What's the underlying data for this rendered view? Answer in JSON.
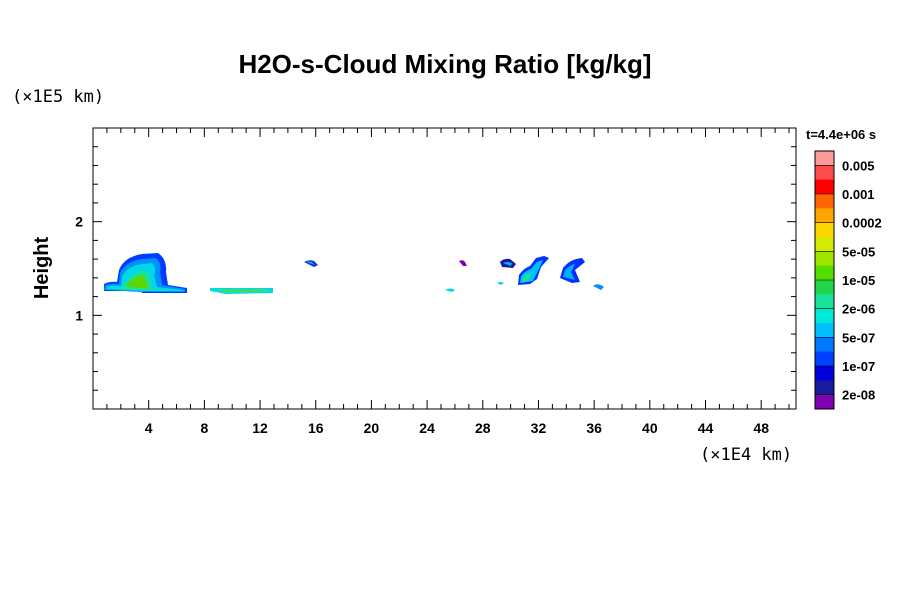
{
  "chart_data": {
    "type": "heatmap",
    "title": "H2O-s-Cloud Mixing Ratio [kg/kg]",
    "xlabel": "",
    "ylabel": "Height",
    "x_unit": "(×1E4 km)",
    "y_unit": "(×1E5 km)",
    "time_label": "t=4.4e+06 s",
    "xlim": [
      0,
      50.5
    ],
    "ylim": [
      0,
      3
    ],
    "x_ticks": [
      4,
      8,
      12,
      16,
      20,
      24,
      28,
      32,
      36,
      40,
      44,
      48
    ],
    "y_ticks": [
      1,
      2
    ],
    "grid": false,
    "colorbar": {
      "labels": [
        "0.005",
        "0.001",
        "0.0002",
        "5e-05",
        "1e-05",
        "2e-06",
        "5e-07",
        "1e-07",
        "2e-08"
      ],
      "colors_top_to_bottom": [
        "#ff9a9a",
        "#ff4b4b",
        "#ff0000",
        "#ff6600",
        "#ffa500",
        "#ffd700",
        "#d4ea00",
        "#9ee600",
        "#55dd00",
        "#22d44a",
        "#19e39a",
        "#00e8d8",
        "#00c0ff",
        "#0078ff",
        "#0040ff",
        "#0000dd",
        "#1a1a9c",
        "#8000b0"
      ]
    },
    "cloud_regions": [
      {
        "x": 4.5,
        "y": 1.45,
        "level": "5e-07"
      },
      {
        "x": 10.5,
        "y": 1.27,
        "level": "2e-06"
      },
      {
        "x": 15.8,
        "y": 1.56,
        "level": "1e-07"
      },
      {
        "x": 25.8,
        "y": 1.27,
        "level": "5e-07"
      },
      {
        "x": 26.8,
        "y": 1.57,
        "level": "2e-08"
      },
      {
        "x": 30.0,
        "y": 1.55,
        "level": "1e-07"
      },
      {
        "x": 29.5,
        "y": 1.36,
        "level": "5e-07"
      },
      {
        "x": 32.3,
        "y": 1.5,
        "level": "5e-07"
      },
      {
        "x": 34.9,
        "y": 1.5,
        "level": "1e-07"
      },
      {
        "x": 36.8,
        "y": 1.31,
        "level": "5e-07"
      }
    ]
  }
}
